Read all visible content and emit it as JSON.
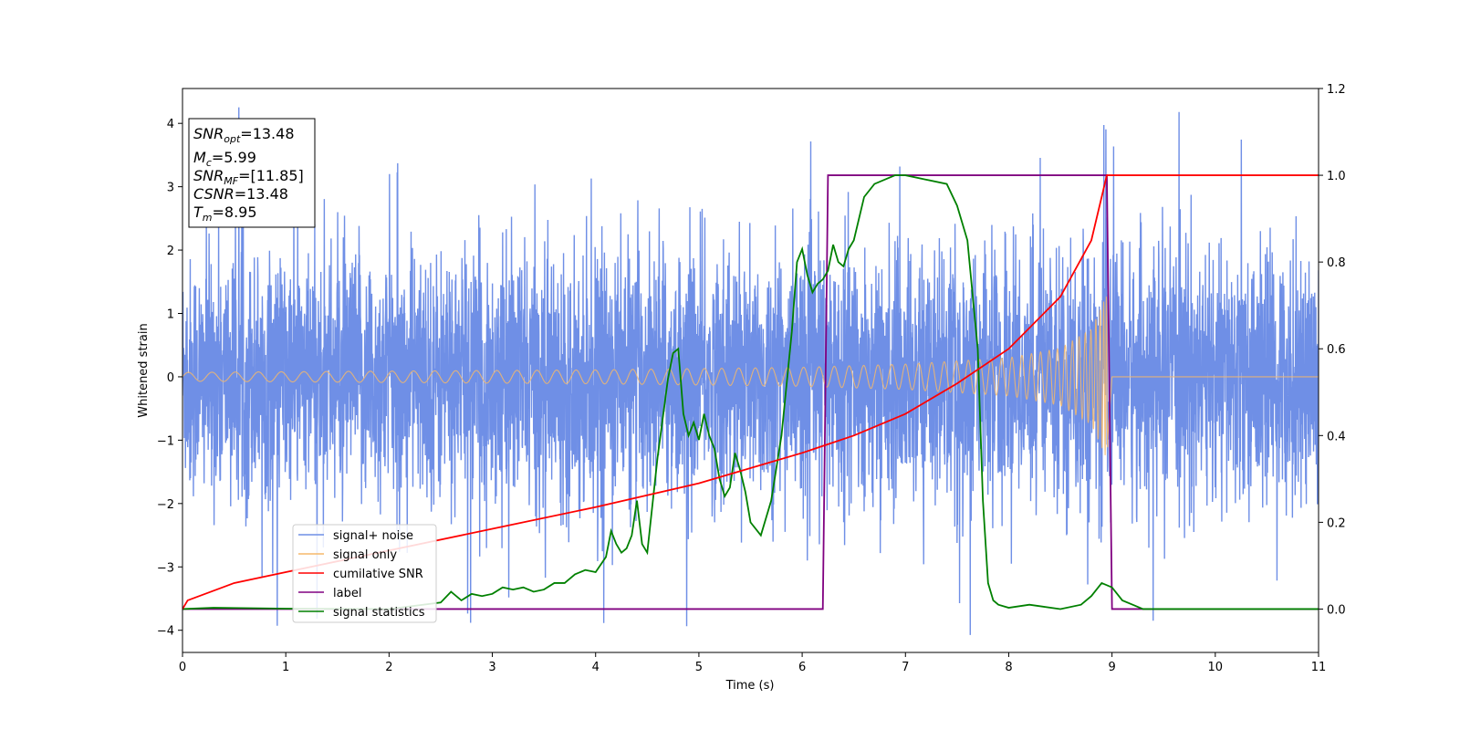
{
  "chart_data": {
    "type": "line",
    "title": "",
    "xlabel": "Time (s)",
    "ylabel": "Whitened strain",
    "xlim": [
      0,
      11
    ],
    "ylim": [
      -4.35,
      4.55
    ],
    "y2lim": [
      -0.1,
      1.2
    ],
    "xticks": [
      0,
      1,
      2,
      3,
      4,
      5,
      6,
      7,
      8,
      9,
      10,
      11
    ],
    "yticks": [
      -4,
      -3,
      -2,
      -1,
      0,
      1,
      2,
      3,
      4
    ],
    "y2ticks": [
      "0.0",
      "0.2",
      "0.4",
      "0.6",
      "0.8",
      "1.0",
      "1.2"
    ],
    "grid": false,
    "legend_position": "lower-center-left",
    "legend": [
      "signal+ noise",
      "signal only",
      "cumilative SNR",
      "label",
      "signal statistics"
    ],
    "annotation": {
      "snr_opt": {
        "base": "SNR",
        "sub": "opt",
        "value": "=13.48"
      },
      "mc": {
        "base": "M",
        "sub": "c",
        "value": "=5.99"
      },
      "snr_mf": {
        "base": "SNR",
        "sub": "MF",
        "value": "=[11.85]"
      },
      "csnr": {
        "base": "CSNR",
        "value": "=13.48"
      },
      "tm": {
        "base": "T",
        "sub": "m",
        "value": "=8.95"
      }
    },
    "colors": {
      "signal_noise": "#6f8fe6",
      "signal_only": "#f5b96b",
      "cumulative_snr": "#ff0000",
      "label": "#800080",
      "signal_statistics": "#008000"
    },
    "series": [
      {
        "name": "signal+ noise",
        "axis": "left",
        "description_values": {
          "t_start": 0,
          "t_end": 11,
          "amplitude_core": 1.6,
          "peak_max": 4.18,
          "peak_min": -3.85
        }
      },
      {
        "name": "signal only",
        "axis": "left",
        "envelope": {
          "t": [
            0,
            2,
            4,
            6,
            7,
            8,
            8.5,
            8.8,
            8.95,
            9.0,
            11
          ],
          "amp": [
            0.07,
            0.09,
            0.11,
            0.15,
            0.2,
            0.3,
            0.45,
            0.75,
            1.3,
            0,
            0
          ]
        }
      },
      {
        "name": "cumilative SNR",
        "axis": "right",
        "t": [
          0,
          0.05,
          0.5,
          1,
          2,
          3,
          4,
          5,
          6,
          6.5,
          7,
          7.5,
          8,
          8.5,
          8.8,
          8.95,
          11
        ],
        "values": [
          0.0,
          0.02,
          0.06,
          0.085,
          0.135,
          0.185,
          0.235,
          0.29,
          0.36,
          0.4,
          0.45,
          0.52,
          0.6,
          0.72,
          0.85,
          1.0,
          1.0
        ]
      },
      {
        "name": "label",
        "axis": "right",
        "t": [
          0,
          6.2,
          6.25,
          8.95,
          9.0,
          11
        ],
        "values": [
          0,
          0,
          1,
          1,
          0,
          0
        ]
      },
      {
        "name": "signal statistics",
        "axis": "right",
        "t": [
          0,
          0.3,
          1,
          2,
          2.5,
          2.6,
          2.7,
          2.8,
          2.9,
          3.0,
          3.1,
          3.2,
          3.3,
          3.4,
          3.5,
          3.6,
          3.7,
          3.8,
          3.9,
          4.0,
          4.1,
          4.15,
          4.2,
          4.25,
          4.3,
          4.35,
          4.4,
          4.45,
          4.5,
          4.6,
          4.7,
          4.75,
          4.8,
          4.85,
          4.9,
          4.95,
          5.0,
          5.05,
          5.1,
          5.15,
          5.2,
          5.25,
          5.3,
          5.35,
          5.4,
          5.45,
          5.5,
          5.6,
          5.7,
          5.8,
          5.9,
          5.95,
          6.0,
          6.05,
          6.1,
          6.15,
          6.2,
          6.25,
          6.3,
          6.35,
          6.4,
          6.45,
          6.5,
          6.55,
          6.6,
          6.7,
          6.8,
          6.9,
          7.0,
          7.2,
          7.4,
          7.5,
          7.6,
          7.7,
          7.75,
          7.8,
          7.85,
          7.9,
          8.0,
          8.2,
          8.5,
          8.7,
          8.8,
          8.9,
          9.0,
          9.1,
          9.2,
          9.3,
          9.5,
          11
        ],
        "values": [
          0.0,
          0.003,
          0.001,
          0.0,
          0.015,
          0.04,
          0.02,
          0.035,
          0.03,
          0.035,
          0.05,
          0.045,
          0.05,
          0.04,
          0.045,
          0.06,
          0.06,
          0.08,
          0.09,
          0.085,
          0.12,
          0.18,
          0.15,
          0.13,
          0.14,
          0.17,
          0.25,
          0.15,
          0.13,
          0.35,
          0.53,
          0.59,
          0.6,
          0.45,
          0.4,
          0.43,
          0.39,
          0.45,
          0.4,
          0.37,
          0.3,
          0.26,
          0.28,
          0.36,
          0.32,
          0.27,
          0.2,
          0.17,
          0.25,
          0.4,
          0.64,
          0.8,
          0.83,
          0.77,
          0.73,
          0.75,
          0.76,
          0.78,
          0.84,
          0.8,
          0.79,
          0.83,
          0.85,
          0.9,
          0.95,
          0.98,
          0.99,
          1.0,
          1.0,
          0.99,
          0.98,
          0.93,
          0.85,
          0.6,
          0.25,
          0.06,
          0.02,
          0.01,
          0.003,
          0.01,
          0.0,
          0.01,
          0.03,
          0.06,
          0.05,
          0.02,
          0.01,
          0.0,
          0.0,
          0.0
        ]
      }
    ]
  }
}
